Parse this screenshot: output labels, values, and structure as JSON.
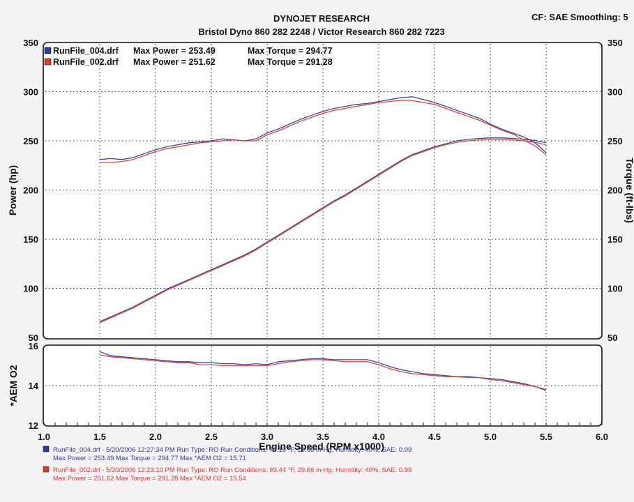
{
  "header": {
    "title": "DYNOJET RESEARCH",
    "subtitle": "Bristol Dyno 860 282 2248 / Victor Research 860 282 7223",
    "corner": "CF: SAE  Smoothing: 5"
  },
  "colors": {
    "run004": "#2a3d9a",
    "run002": "#e03a2e",
    "grid": "#222222",
    "background": "#ffffff"
  },
  "chart_data": [
    {
      "type": "line",
      "title": "",
      "xlabel": "Engine Speed (RPM x1000)",
      "ylabel": "Power (hp)",
      "y2label": "Torque (ft-lbs)",
      "xlim": [
        1.0,
        6.0
      ],
      "ylim": [
        50,
        350
      ],
      "y2lim": [
        50,
        350
      ],
      "x_ticks": [
        "1.0",
        "1.5",
        "2.0",
        "2.5",
        "3.0",
        "3.5",
        "4.0",
        "4.5",
        "5.0",
        "5.5",
        "6.0"
      ],
      "y_ticks": [
        "50",
        "100",
        "150",
        "200",
        "250",
        "300",
        "350"
      ],
      "grid": true,
      "legend_position": "top-left",
      "legend": [
        {
          "file": "RunFile_004.drf",
          "max_power_label": "Max Power = 253.49",
          "max_torque_label": "Max Torque = 294.77"
        },
        {
          "file": "RunFile_002.drf",
          "max_power_label": "Max Power = 251.62",
          "max_torque_label": "Max Torque = 291.28"
        }
      ],
      "x": [
        1.5,
        1.6,
        1.7,
        1.8,
        1.9,
        2.0,
        2.1,
        2.2,
        2.3,
        2.4,
        2.5,
        2.6,
        2.7,
        2.8,
        2.9,
        3.0,
        3.1,
        3.2,
        3.3,
        3.4,
        3.5,
        3.6,
        3.7,
        3.8,
        3.9,
        4.0,
        4.1,
        4.2,
        4.3,
        4.4,
        4.5,
        4.6,
        4.7,
        4.8,
        4.9,
        5.0,
        5.1,
        5.2,
        5.3,
        5.4,
        5.5
      ],
      "series": [
        {
          "name": "RunFile_004.drf Power",
          "color": "#2a3d9a",
          "values": [
            66,
            71,
            76,
            81,
            87,
            93,
            99,
            104,
            109,
            114,
            119,
            124,
            129,
            134,
            140,
            147,
            154,
            161,
            168,
            175,
            182,
            189,
            195,
            202,
            209,
            216,
            223,
            230,
            236,
            240,
            244,
            247,
            250,
            251.5,
            252.5,
            253,
            253,
            252.5,
            251.5,
            250.5,
            248
          ]
        },
        {
          "name": "RunFile_002.drf Power",
          "color": "#e03a2e",
          "values": [
            65,
            70,
            75,
            80,
            86,
            92,
            98,
            103,
            108,
            113,
            118,
            123,
            128,
            133,
            139,
            146,
            153,
            160,
            167,
            174,
            181,
            188,
            194,
            201,
            208,
            215,
            222,
            229,
            235,
            239,
            243,
            246,
            248.5,
            250,
            251,
            251.5,
            251.6,
            251,
            250,
            248.5,
            246
          ]
        },
        {
          "name": "RunFile_004.drf Torque",
          "color": "#2a3d9a",
          "values": [
            231,
            232,
            231,
            233,
            237,
            241,
            244,
            246,
            248,
            249,
            250,
            252,
            251,
            250,
            252,
            258,
            262,
            267,
            272,
            276,
            280,
            283,
            285,
            287,
            288,
            290,
            292,
            294,
            294.8,
            292,
            289,
            285,
            281,
            277,
            273,
            267,
            262,
            258,
            254,
            248,
            238
          ]
        },
        {
          "name": "RunFile_002.drf Torque",
          "color": "#e03a2e",
          "values": [
            228,
            228,
            229,
            231,
            235,
            239,
            242,
            244,
            246,
            248,
            249,
            250,
            251,
            250,
            250,
            256,
            260,
            265,
            270,
            274,
            278,
            281,
            283,
            285,
            287,
            289,
            290,
            291.28,
            291,
            289,
            287,
            283,
            279,
            275,
            271,
            266,
            261,
            257,
            251,
            245,
            236
          ]
        }
      ]
    },
    {
      "type": "line",
      "title": "",
      "xlabel": "Engine Speed (RPM x1000)",
      "ylabel": "*AEM O2",
      "xlim": [
        1.0,
        6.0
      ],
      "ylim": [
        12,
        16
      ],
      "y_ticks": [
        "12",
        "14",
        "16"
      ],
      "grid": true,
      "x": [
        1.5,
        1.6,
        1.7,
        1.8,
        1.9,
        2.0,
        2.1,
        2.2,
        2.3,
        2.4,
        2.5,
        2.6,
        2.7,
        2.8,
        2.9,
        3.0,
        3.1,
        3.2,
        3.3,
        3.4,
        3.5,
        3.6,
        3.7,
        3.8,
        3.9,
        4.0,
        4.1,
        4.2,
        4.3,
        4.4,
        4.5,
        4.6,
        4.7,
        4.8,
        4.9,
        5.0,
        5.1,
        5.2,
        5.3,
        5.4,
        5.5
      ],
      "series": [
        {
          "name": "RunFile_004.drf *AEM O2",
          "color": "#2a3d9a",
          "values": [
            15.71,
            15.5,
            15.45,
            15.4,
            15.35,
            15.3,
            15.25,
            15.2,
            15.2,
            15.15,
            15.15,
            15.1,
            15.1,
            15.05,
            15.1,
            15.05,
            15.2,
            15.25,
            15.3,
            15.35,
            15.35,
            15.3,
            15.3,
            15.3,
            15.3,
            15.15,
            14.95,
            14.8,
            14.7,
            14.6,
            14.55,
            14.5,
            14.45,
            14.45,
            14.4,
            14.35,
            14.3,
            14.2,
            14.1,
            13.95,
            13.75
          ]
        },
        {
          "name": "RunFile_002.drf *AEM O2",
          "color": "#e03a2e",
          "values": [
            15.54,
            15.45,
            15.4,
            15.35,
            15.3,
            15.25,
            15.2,
            15.15,
            15.15,
            15.05,
            15.05,
            15.0,
            15.0,
            15.0,
            15.0,
            15.0,
            15.1,
            15.2,
            15.25,
            15.3,
            15.3,
            15.25,
            15.2,
            15.2,
            15.2,
            15.05,
            14.85,
            14.7,
            14.6,
            14.55,
            14.5,
            14.45,
            14.45,
            14.4,
            14.4,
            14.3,
            14.25,
            14.15,
            14.05,
            13.95,
            13.8
          ]
        }
      ]
    }
  ],
  "footer": {
    "run004": {
      "line1": "RunFile_004.drf - 5/20/2006 12:27:34 PM  Run Type: RO  Run Conditions: 70.16 °F, 29.66 in-Hg,  Humidity: 40%,  SAE: 0.99",
      "line2": "Max Power = 253.49  Max Torque = 294.77  Max *AEM O2 = 15.71"
    },
    "run002": {
      "line1": "RunFile_002.drf - 5/20/2006 12:23:10 PM  Run Type: RO  Run Conditions: 69.44 °F, 29.66 in-Hg,  Humidity:  40%,  SAE: 0.99",
      "line2": "Max Power = 251.62  Max Torque = 291.28  Max *AEM O2 = 15.54"
    }
  }
}
